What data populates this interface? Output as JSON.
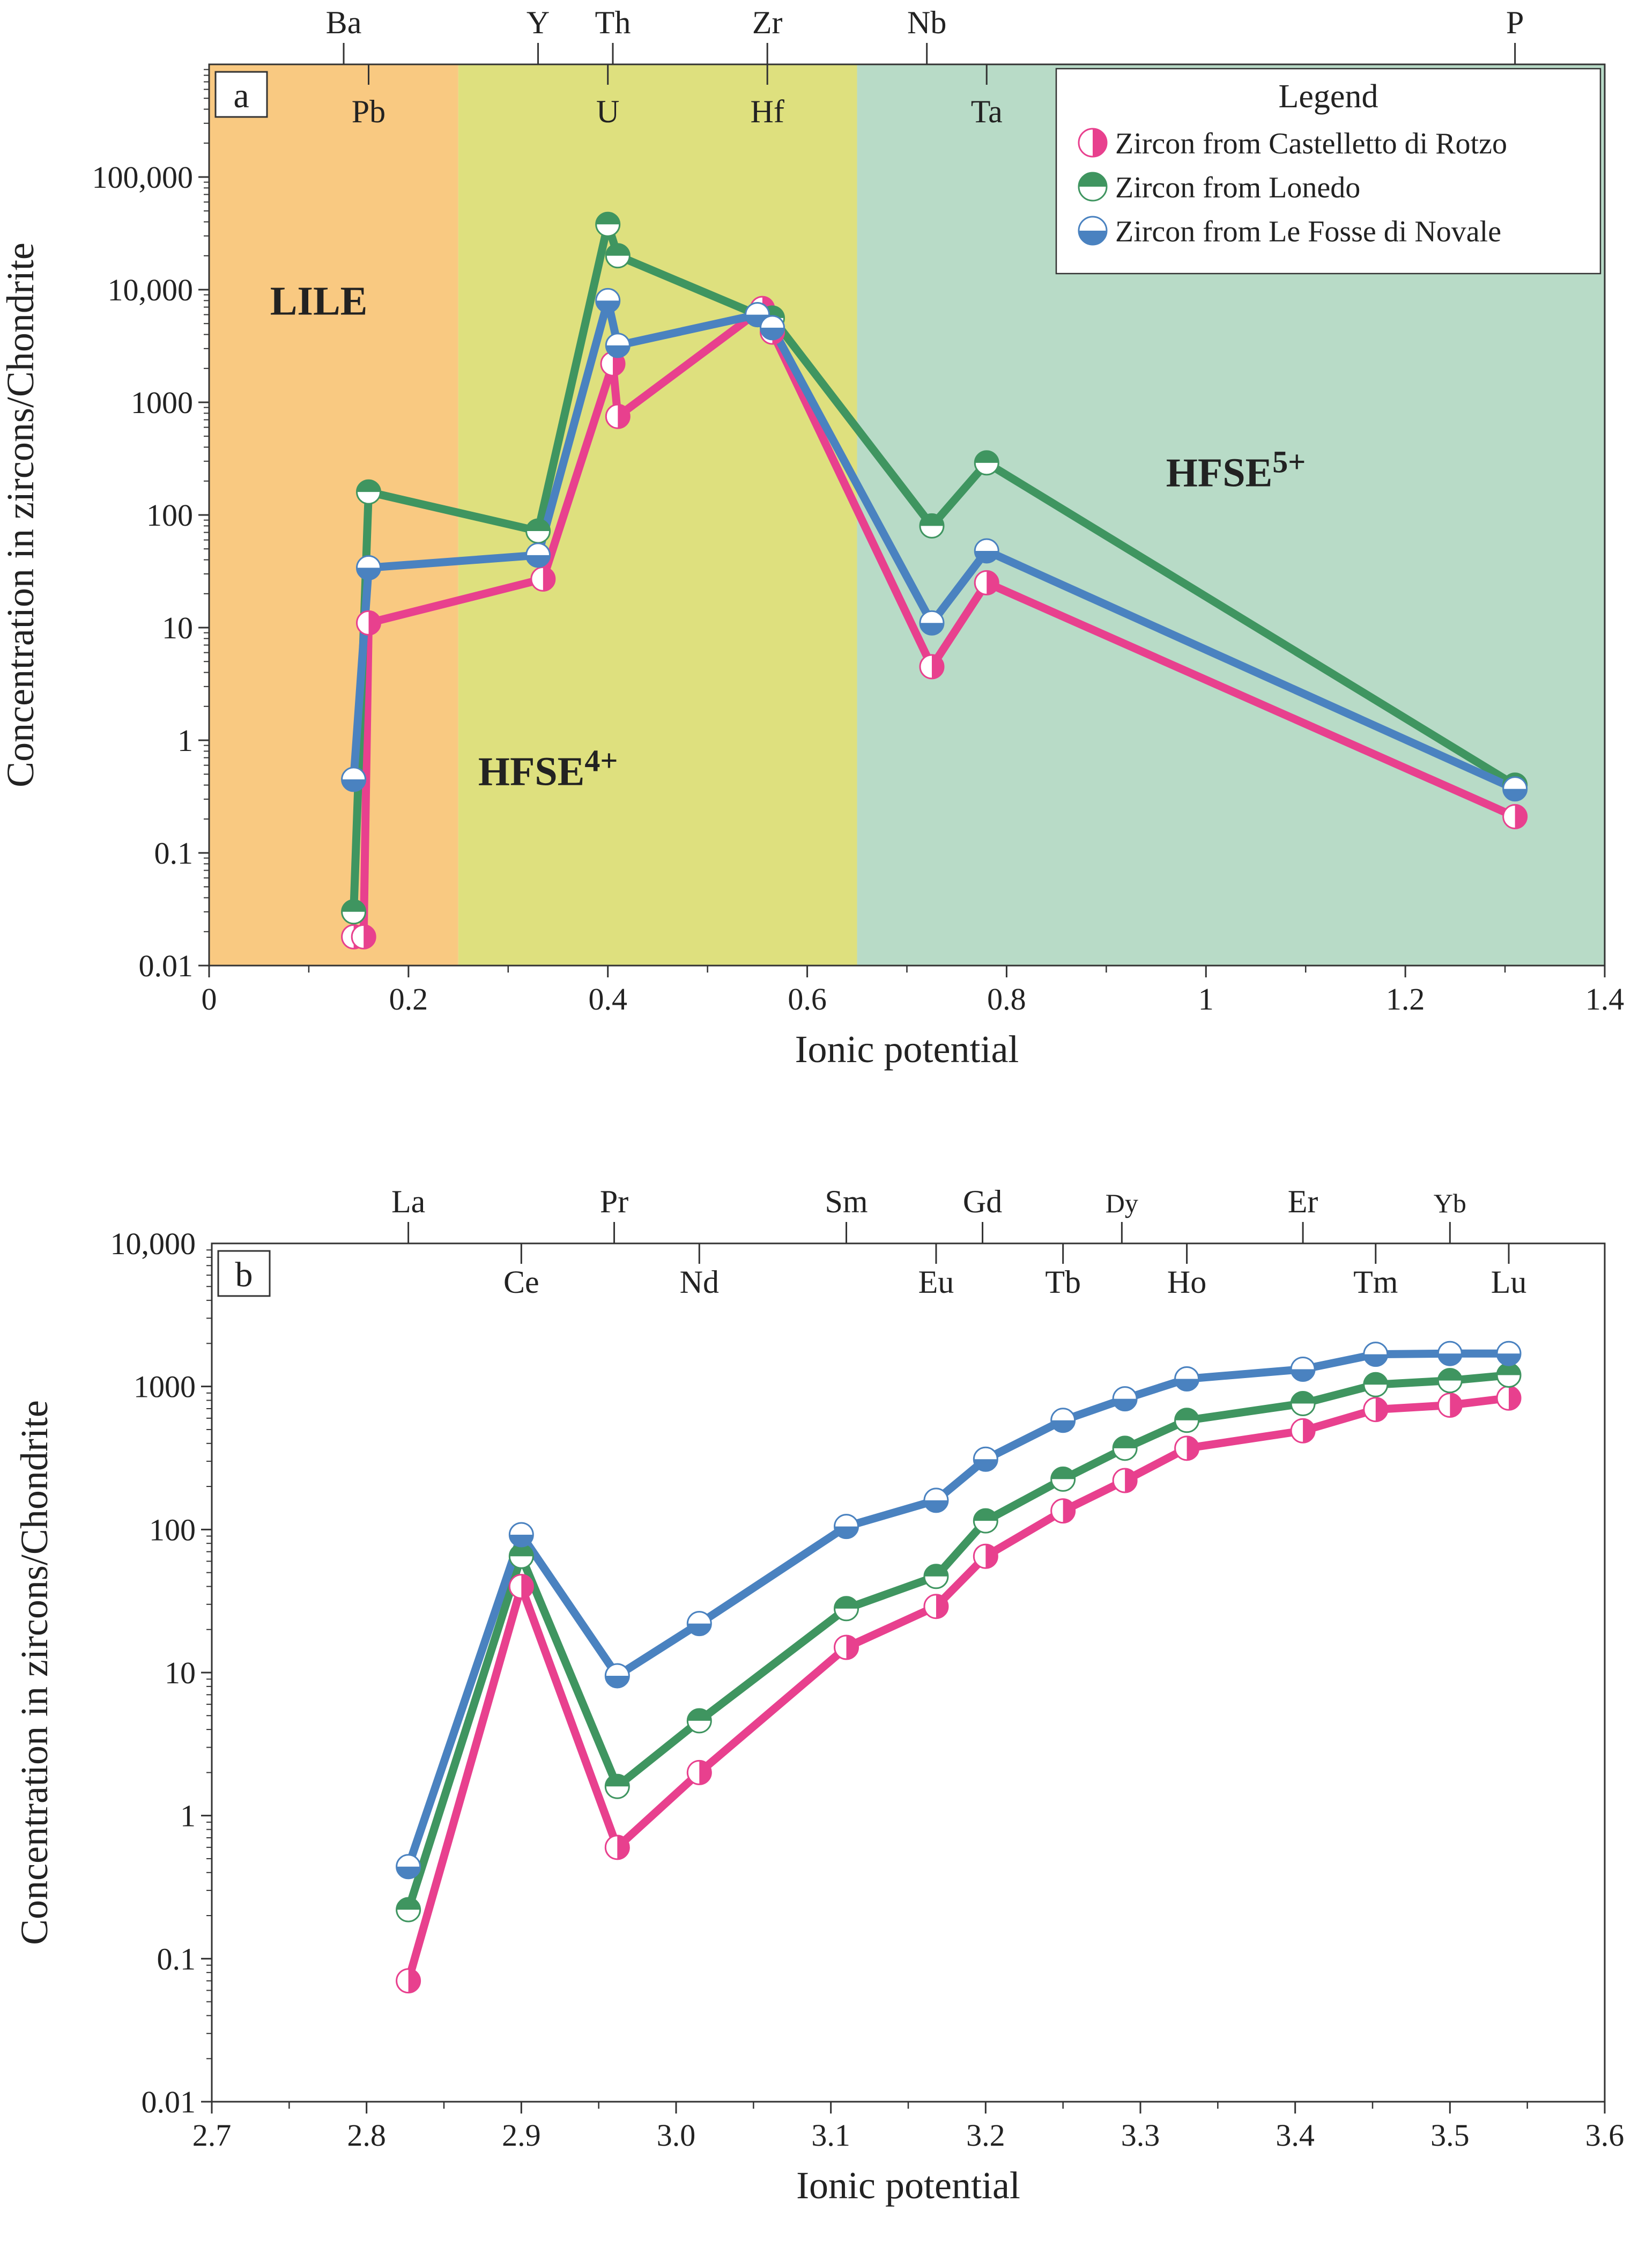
{
  "colors": {
    "castelletto": "#E8408E",
    "lonedo": "#3F9560",
    "novale": "#4A82C0",
    "lile_band": "#F9C981",
    "hfse4_band": "#DEE07E",
    "hfse5_band": "#B8DBC7"
  },
  "legend": {
    "title": "Legend",
    "items": [
      {
        "label": "Zircon from Castelletto di Rotzo",
        "icon": "half-filled-circle-right"
      },
      {
        "label": "Zircon from Lonedo",
        "icon": "half-filled-circle-top"
      },
      {
        "label": "Zircon from Le Fosse di Novale",
        "icon": "half-filled-circle-bottom"
      }
    ]
  },
  "chart_data": [
    {
      "panel": "a",
      "type": "line",
      "xlabel": "Ionic potential",
      "ylabel": "Concentration in zircons/Chondrite",
      "xlim": [
        0,
        1.4
      ],
      "xticks": [
        "0",
        "0.2",
        "0.4",
        "0.6",
        "0.8",
        "1",
        "1.2",
        "1.4"
      ],
      "ylim": [
        0.01,
        1000000
      ],
      "yscale": "log",
      "yticks": [
        "0.01",
        "0.1",
        "1",
        "10",
        "100",
        "1000",
        "10,000",
        "100,000"
      ],
      "regions": [
        {
          "name": "LILE",
          "x_range": [
            0,
            0.25
          ]
        },
        {
          "name": "HFSE",
          "superscript": "4+",
          "x_range": [
            0.25,
            0.65
          ]
        },
        {
          "name": "HFSE",
          "superscript": "5+",
          "x_range": [
            0.65,
            1.4
          ]
        }
      ],
      "element_labels_top": [
        {
          "label": "Ba",
          "x": 0.135
        },
        {
          "label": "Y",
          "x": 0.33
        },
        {
          "label": "Th",
          "x": 0.405
        },
        {
          "label": "Zr",
          "x": 0.56
        },
        {
          "label": "Nb",
          "x": 0.72
        },
        {
          "label": "P",
          "x": 1.31
        }
      ],
      "element_labels_inner": [
        {
          "label": "Pb",
          "x": 0.16
        },
        {
          "label": "U",
          "x": 0.4
        },
        {
          "label": "Hf",
          "x": 0.56
        },
        {
          "label": "Ta",
          "x": 0.78
        }
      ],
      "series": [
        {
          "name": "Zircon from Castelletto di Rotzo",
          "x": [
            0.145,
            0.155,
            0.16,
            0.335,
            0.405,
            0.41,
            0.555,
            0.565,
            0.725,
            0.78,
            1.31
          ],
          "values": [
            0.018,
            0.018,
            11,
            27,
            2200,
            750,
            6800,
            4200,
            4.5,
            25,
            0.21
          ]
        },
        {
          "name": "Zircon from Lonedo",
          "x": [
            0.145,
            0.16,
            0.33,
            0.4,
            0.41,
            0.55,
            0.565,
            0.725,
            0.78,
            1.31
          ],
          "values": [
            0.03,
            160,
            72,
            38000,
            20000,
            6000,
            5600,
            80,
            290,
            0.4
          ]
        },
        {
          "name": "Zircon from Le Fosse di Novale",
          "x": [
            0.145,
            0.16,
            0.33,
            0.4,
            0.41,
            0.55,
            0.565,
            0.725,
            0.78,
            1.31
          ],
          "values": [
            0.45,
            34,
            44,
            8000,
            3200,
            6000,
            4600,
            11,
            48,
            0.37
          ]
        }
      ]
    },
    {
      "panel": "b",
      "type": "line",
      "xlabel": "Ionic potential",
      "ylabel": "Concentration in zircons/Chondrite",
      "xlim": [
        2.7,
        3.6
      ],
      "xticks": [
        "2.7",
        "2.8",
        "2.9",
        "3.0",
        "3.1",
        "3.2",
        "3.3",
        "3.4",
        "3.5",
        "3.6"
      ],
      "ylim": [
        0.01,
        10000
      ],
      "yscale": "log",
      "yticks": [
        "0.01",
        "0.1",
        "1",
        "10",
        "100",
        "1000",
        "10,000"
      ],
      "element_labels_top": [
        {
          "label": "La",
          "x": 2.827
        },
        {
          "label": "Pr",
          "x": 2.96
        },
        {
          "label": "Sm",
          "x": 3.11
        },
        {
          "label": "Gd",
          "x": 3.198
        },
        {
          "label": "Dy",
          "x": 3.288,
          "small": true
        },
        {
          "label": "Er",
          "x": 3.405
        },
        {
          "label": "Yb",
          "x": 3.5,
          "small": true
        }
      ],
      "element_labels_inner": [
        {
          "label": "Ce",
          "x": 2.9
        },
        {
          "label": "Nd",
          "x": 3.015
        },
        {
          "label": "Eu",
          "x": 3.168
        },
        {
          "label": "Tb",
          "x": 3.25
        },
        {
          "label": "Ho",
          "x": 3.33
        },
        {
          "label": "Tm",
          "x": 3.452
        },
        {
          "label": "Lu",
          "x": 3.538
        }
      ],
      "series": [
        {
          "name": "Zircon from Castelletto di Rotzo",
          "x": [
            2.827,
            2.9,
            2.962,
            3.015,
            3.11,
            3.168,
            3.2,
            3.25,
            3.29,
            3.33,
            3.405,
            3.452,
            3.5,
            3.538
          ],
          "values": [
            0.07,
            40,
            0.6,
            2,
            15,
            29,
            65,
            135,
            220,
            370,
            490,
            690,
            740,
            830
          ]
        },
        {
          "name": "Zircon from Lonedo",
          "x": [
            2.827,
            2.9,
            2.962,
            3.015,
            3.11,
            3.168,
            3.2,
            3.25,
            3.29,
            3.33,
            3.405,
            3.452,
            3.5,
            3.538
          ],
          "values": [
            0.22,
            65,
            1.6,
            4.6,
            28,
            47,
            115,
            225,
            370,
            580,
            760,
            1030,
            1100,
            1200
          ]
        },
        {
          "name": "Zircon from Le Fosse di Novale",
          "x": [
            2.827,
            2.9,
            2.962,
            3.015,
            3.11,
            3.168,
            3.2,
            3.25,
            3.29,
            3.33,
            3.405,
            3.452,
            3.5,
            3.538
          ],
          "values": [
            0.44,
            92,
            9.5,
            22,
            105,
            160,
            310,
            580,
            820,
            1130,
            1320,
            1680,
            1700,
            1700
          ]
        }
      ]
    }
  ]
}
